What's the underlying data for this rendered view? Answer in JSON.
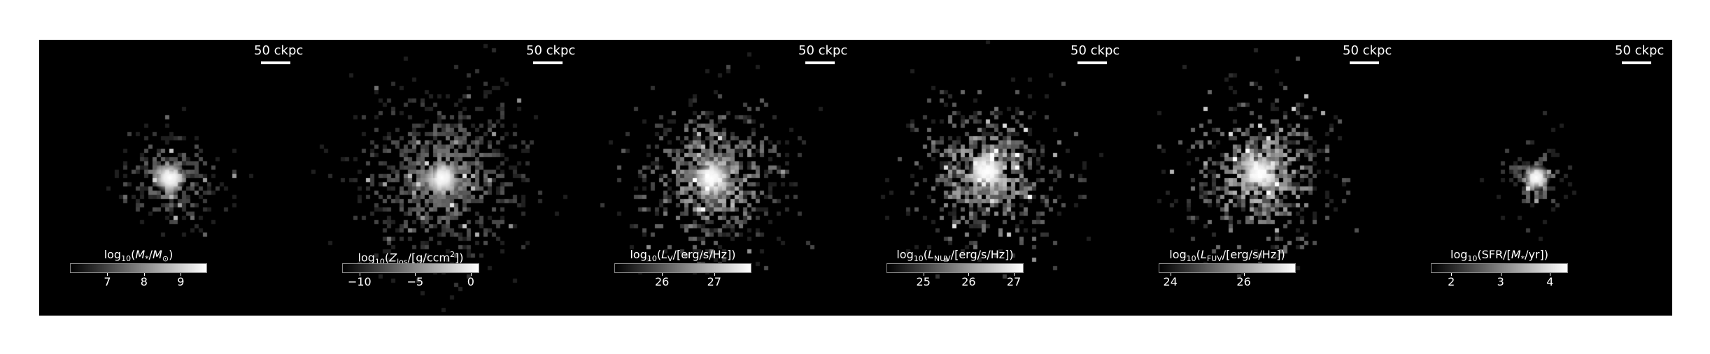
{
  "panels": [
    {
      "id": "stellar-mass",
      "scalebar": "50 ckpc",
      "colorbar": {
        "label_html": "log<sub>10</sub>(<i>M</i><sub>*</sub>/<i>M</i><sub>⊙</sub>)",
        "label_text": "log10(M*/M⊙)",
        "range": [
          6.0,
          9.7
        ],
        "ticks": [
          {
            "value": 7,
            "label": "7"
          },
          {
            "value": 8,
            "label": "8"
          },
          {
            "value": 9,
            "label": "9"
          }
        ]
      },
      "image": {
        "center": [
          0.48,
          0.5
        ],
        "spread": 0.08,
        "core": 0.8,
        "density": 0.7,
        "brightness": 0.55,
        "noise": 0.3,
        "seed": 1
      }
    },
    {
      "id": "metallicity",
      "scalebar": "50 ckpc",
      "colorbar": {
        "label_html": "log<sub>10</sub>(<i>Z</i><sub>los</sub>/[g/ccm<sup>2</sup>])",
        "label_text": "log10(Zlos/[g/ccm2])",
        "range": [
          -11.5,
          0.7
        ],
        "ticks": [
          {
            "value": -10,
            "label": "−10"
          },
          {
            "value": -5,
            "label": "−5"
          },
          {
            "value": 0,
            "label": "0"
          }
        ]
      },
      "image": {
        "center": [
          0.48,
          0.5
        ],
        "spread": 0.13,
        "core": 0.85,
        "density": 0.75,
        "brightness": 0.6,
        "noise": 0.25,
        "seed": 2
      }
    },
    {
      "id": "v-band",
      "scalebar": "50 ckpc",
      "colorbar": {
        "label_html": "log<sub>10</sub>(<i>L</i><sub>V</sub>/[erg/s/Hz])",
        "label_text": "log10(LV/[erg/s/Hz])",
        "range": [
          25.1,
          27.7
        ],
        "ticks": [
          {
            "value": 26,
            "label": "26"
          },
          {
            "value": 27,
            "label": "27"
          }
        ]
      },
      "image": {
        "center": [
          0.47,
          0.5
        ],
        "spread": 0.12,
        "core": 0.9,
        "density": 0.75,
        "brightness": 0.7,
        "noise": 0.45,
        "seed": 3
      }
    },
    {
      "id": "nuv-band",
      "scalebar": "50 ckpc",
      "colorbar": {
        "label_html": "log<sub>10</sub>(<i>L</i><sub>NUV</sub>/[erg/s/Hz])",
        "label_text": "log10(LNUV/[erg/s/Hz])",
        "range": [
          24.2,
          27.2
        ],
        "ticks": [
          {
            "value": 25,
            "label": "25"
          },
          {
            "value": 26,
            "label": "26"
          },
          {
            "value": 27,
            "label": "27"
          }
        ]
      },
      "image": {
        "center": [
          0.48,
          0.48
        ],
        "spread": 0.12,
        "core": 0.9,
        "density": 0.75,
        "brightness": 0.75,
        "noise": 0.5,
        "seed": 4
      }
    },
    {
      "id": "fuv-band",
      "scalebar": "50 ckpc",
      "colorbar": {
        "label_html": "log<sub>10</sub>(<i>L</i><sub>FUV</sub>/[erg/s/Hz])",
        "label_text": "log10(LFUV/[erg/s/Hz])",
        "range": [
          23.7,
          27.4
        ],
        "ticks": [
          {
            "value": 24,
            "label": "24"
          },
          {
            "value": 26,
            "label": "26"
          }
        ]
      },
      "image": {
        "center": [
          0.48,
          0.48
        ],
        "spread": 0.12,
        "core": 0.9,
        "density": 0.75,
        "brightness": 0.75,
        "noise": 0.5,
        "seed": 5
      }
    },
    {
      "id": "sfr",
      "scalebar": "50 ckpc",
      "colorbar": {
        "label_html": "log<sub>10</sub>(SFR/[<i>M</i><sub>*</sub>/yr])",
        "label_text": "log10(SFR/[M*/yr])",
        "range": [
          1.6,
          4.35
        ],
        "ticks": [
          {
            "value": 2,
            "label": "2"
          },
          {
            "value": 3,
            "label": "3"
          },
          {
            "value": 4,
            "label": "4"
          }
        ]
      },
      "image": {
        "center": [
          0.5,
          0.5
        ],
        "spread": 0.06,
        "core": 0.7,
        "density": 0.45,
        "brightness": 0.55,
        "noise": 0.3,
        "seed": 6
      }
    }
  ]
}
